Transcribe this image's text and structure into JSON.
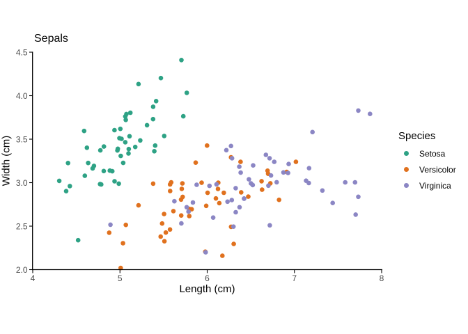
{
  "chart_data": {
    "type": "scatter",
    "title": "Sepals",
    "xlabel": "Length (cm)",
    "ylabel": "Width (cm)",
    "xlim": [
      4,
      8
    ],
    "ylim": [
      2.0,
      4.5
    ],
    "grid": false,
    "background": "#ffffff",
    "axis_line_color": "#000000",
    "tick_label_color": "#4d4d4d",
    "x_ticks": {
      "values": [
        4,
        5,
        6,
        7,
        8
      ],
      "labels": [
        "4",
        "5",
        "6",
        "7",
        "8"
      ]
    },
    "y_ticks": {
      "values": [
        2.0,
        2.5,
        3.0,
        3.5,
        4.0,
        4.5
      ],
      "labels": [
        "2.0",
        "2.5",
        "3.0",
        "3.5",
        "4.0",
        "4.5"
      ]
    },
    "legend": {
      "title": "Species",
      "position": "right"
    },
    "point_jitter": {
      "width": 0.04,
      "height": 0.04,
      "seed": 7
    },
    "point_radius": 3.3,
    "series": [
      {
        "name": "Setosa",
        "color": "#2ea285",
        "points": [
          [
            5.1,
            3.5
          ],
          [
            4.9,
            3.0
          ],
          [
            4.7,
            3.2
          ],
          [
            4.6,
            3.1
          ],
          [
            5.0,
            3.6
          ],
          [
            5.4,
            3.9
          ],
          [
            4.6,
            3.4
          ],
          [
            5.0,
            3.4
          ],
          [
            4.4,
            2.9
          ],
          [
            4.9,
            3.1
          ],
          [
            5.4,
            3.7
          ],
          [
            4.8,
            3.4
          ],
          [
            4.8,
            3.0
          ],
          [
            4.3,
            3.0
          ],
          [
            5.8,
            4.0
          ],
          [
            5.7,
            4.4
          ],
          [
            5.4,
            3.9
          ],
          [
            5.1,
            3.5
          ],
          [
            5.7,
            3.8
          ],
          [
            5.1,
            3.8
          ],
          [
            5.4,
            3.4
          ],
          [
            5.1,
            3.7
          ],
          [
            4.6,
            3.6
          ],
          [
            5.1,
            3.3
          ],
          [
            4.8,
            3.4
          ],
          [
            5.0,
            3.0
          ],
          [
            5.0,
            3.4
          ],
          [
            5.2,
            3.5
          ],
          [
            5.2,
            3.4
          ],
          [
            4.7,
            3.2
          ],
          [
            4.8,
            3.1
          ],
          [
            5.4,
            3.4
          ],
          [
            5.2,
            4.1
          ],
          [
            5.5,
            4.2
          ],
          [
            4.9,
            3.1
          ],
          [
            5.0,
            3.2
          ],
          [
            5.5,
            3.5
          ],
          [
            4.9,
            3.6
          ],
          [
            4.4,
            3.0
          ],
          [
            5.1,
            3.4
          ],
          [
            5.0,
            3.5
          ],
          [
            4.5,
            2.3
          ],
          [
            4.4,
            3.2
          ],
          [
            5.0,
            3.5
          ],
          [
            5.1,
            3.8
          ],
          [
            4.8,
            3.0
          ],
          [
            5.1,
            3.8
          ],
          [
            4.6,
            3.2
          ],
          [
            5.3,
            3.7
          ],
          [
            5.0,
            3.3
          ]
        ]
      },
      {
        "name": "Versicolor",
        "color": "#e0711e",
        "points": [
          [
            7.0,
            3.2
          ],
          [
            6.4,
            3.2
          ],
          [
            6.9,
            3.1
          ],
          [
            5.5,
            2.3
          ],
          [
            6.5,
            2.8
          ],
          [
            5.7,
            2.8
          ],
          [
            6.3,
            3.3
          ],
          [
            4.9,
            2.4
          ],
          [
            6.6,
            2.9
          ],
          [
            5.2,
            2.7
          ],
          [
            5.0,
            2.0
          ],
          [
            5.9,
            3.0
          ],
          [
            6.0,
            2.2
          ],
          [
            6.1,
            2.9
          ],
          [
            5.6,
            2.9
          ],
          [
            6.7,
            3.1
          ],
          [
            5.6,
            3.0
          ],
          [
            5.8,
            2.7
          ],
          [
            6.2,
            2.2
          ],
          [
            5.6,
            2.5
          ],
          [
            5.9,
            3.2
          ],
          [
            6.1,
            2.8
          ],
          [
            6.3,
            2.5
          ],
          [
            6.1,
            2.8
          ],
          [
            6.4,
            2.9
          ],
          [
            6.6,
            3.0
          ],
          [
            6.8,
            2.8
          ],
          [
            6.7,
            3.0
          ],
          [
            6.0,
            2.9
          ],
          [
            5.7,
            2.6
          ],
          [
            5.5,
            2.4
          ],
          [
            5.5,
            2.4
          ],
          [
            5.8,
            2.7
          ],
          [
            6.0,
            2.7
          ],
          [
            5.4,
            3.0
          ],
          [
            6.0,
            3.4
          ],
          [
            6.7,
            3.1
          ],
          [
            6.3,
            2.3
          ],
          [
            5.6,
            3.0
          ],
          [
            5.5,
            2.5
          ],
          [
            5.5,
            2.6
          ],
          [
            6.1,
            3.0
          ],
          [
            5.8,
            2.6
          ],
          [
            5.0,
            2.3
          ],
          [
            5.6,
            2.7
          ],
          [
            5.7,
            3.0
          ],
          [
            5.7,
            2.9
          ],
          [
            6.2,
            2.9
          ],
          [
            5.1,
            2.5
          ],
          [
            5.7,
            2.8
          ]
        ]
      },
      {
        "name": "Virginica",
        "color": "#8b86c4",
        "points": [
          [
            6.3,
            3.3
          ],
          [
            5.8,
            2.7
          ],
          [
            7.1,
            3.0
          ],
          [
            6.3,
            2.9
          ],
          [
            6.5,
            3.0
          ],
          [
            7.6,
            3.0
          ],
          [
            4.9,
            2.5
          ],
          [
            7.3,
            2.9
          ],
          [
            6.7,
            2.5
          ],
          [
            7.2,
            3.6
          ],
          [
            6.5,
            3.2
          ],
          [
            6.4,
            2.7
          ],
          [
            6.8,
            3.0
          ],
          [
            5.7,
            2.5
          ],
          [
            5.8,
            2.8
          ],
          [
            6.4,
            3.2
          ],
          [
            6.5,
            3.0
          ],
          [
            7.7,
            3.8
          ],
          [
            7.7,
            2.6
          ],
          [
            6.0,
            2.2
          ],
          [
            6.9,
            3.2
          ],
          [
            5.6,
            2.8
          ],
          [
            7.7,
            2.8
          ],
          [
            6.3,
            2.7
          ],
          [
            6.7,
            3.3
          ],
          [
            7.2,
            3.2
          ],
          [
            6.2,
            2.8
          ],
          [
            6.1,
            3.0
          ],
          [
            6.4,
            2.8
          ],
          [
            7.2,
            3.0
          ],
          [
            7.4,
            2.8
          ],
          [
            7.9,
            3.8
          ],
          [
            6.4,
            2.8
          ],
          [
            6.3,
            2.8
          ],
          [
            6.1,
            2.6
          ],
          [
            7.7,
            3.0
          ],
          [
            6.3,
            3.4
          ],
          [
            6.4,
            3.1
          ],
          [
            6.0,
            3.0
          ],
          [
            6.9,
            3.1
          ],
          [
            6.7,
            3.1
          ],
          [
            6.9,
            3.1
          ],
          [
            5.8,
            2.7
          ],
          [
            6.8,
            3.2
          ],
          [
            6.7,
            3.3
          ],
          [
            6.7,
            3.0
          ],
          [
            6.3,
            2.5
          ],
          [
            6.5,
            3.0
          ],
          [
            6.2,
            3.4
          ],
          [
            5.9,
            3.0
          ]
        ]
      }
    ]
  }
}
